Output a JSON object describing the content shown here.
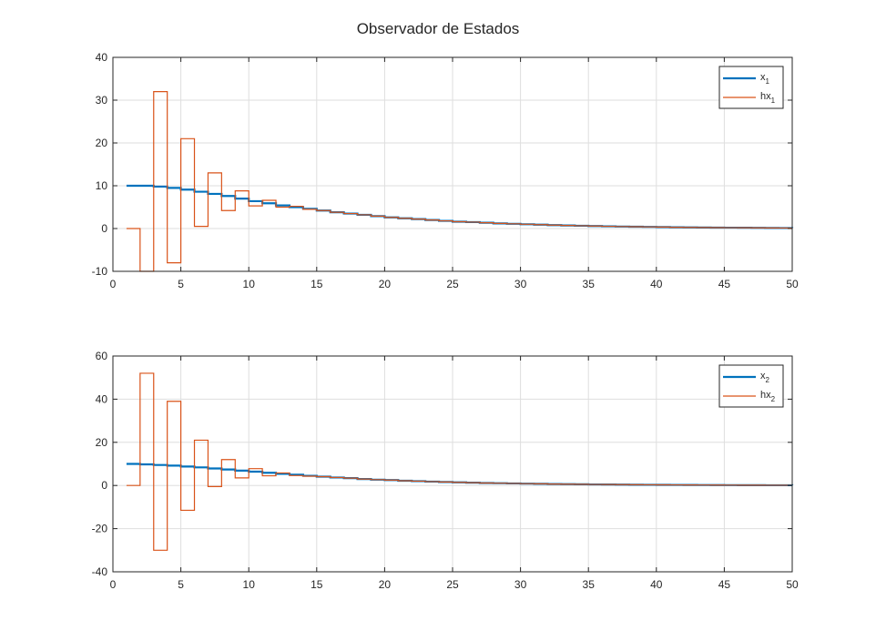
{
  "figure": {
    "title": "Observador de Estados"
  },
  "chart_data": [
    {
      "type": "line",
      "step": true,
      "grid": true,
      "legend_position": "top-right",
      "xlim": [
        0,
        50
      ],
      "ylim": [
        -10,
        40
      ],
      "xticks": [
        0,
        5,
        10,
        15,
        20,
        25,
        30,
        35,
        40,
        45,
        50
      ],
      "yticks": [
        -10,
        0,
        10,
        20,
        30,
        40
      ],
      "colors": {
        "x": "#0072BD",
        "hx": "#D95319"
      },
      "legend": [
        {
          "base": "x",
          "sub": "1",
          "color": "#0072BD"
        },
        {
          "base": "hx",
          "sub": "1",
          "color": "#D95319"
        }
      ],
      "series": [
        {
          "name": "x1",
          "x": [
            1,
            2,
            3,
            4,
            5,
            6,
            7,
            8,
            9,
            10,
            11,
            12,
            13,
            14,
            15,
            16,
            17,
            18,
            19,
            20,
            21,
            22,
            23,
            24,
            25,
            26,
            27,
            28,
            29,
            30,
            31,
            32,
            33,
            34,
            35,
            36,
            37,
            38,
            39,
            40,
            41,
            42,
            43,
            44,
            45,
            46,
            47,
            48,
            49,
            50
          ],
          "values": [
            10,
            10,
            9.8,
            9.5,
            9.1,
            8.6,
            8.1,
            7.6,
            7.0,
            6.4,
            5.9,
            5.4,
            5.0,
            4.6,
            4.2,
            3.8,
            3.5,
            3.2,
            2.9,
            2.6,
            2.4,
            2.2,
            2.0,
            1.8,
            1.6,
            1.5,
            1.35,
            1.2,
            1.1,
            1.0,
            0.9,
            0.8,
            0.72,
            0.65,
            0.58,
            0.52,
            0.47,
            0.42,
            0.38,
            0.34,
            0.3,
            0.27,
            0.24,
            0.22,
            0.2,
            0.18,
            0.16,
            0.14,
            0.12,
            0.1
          ]
        },
        {
          "name": "hx1",
          "x": [
            1,
            2,
            3,
            4,
            5,
            6,
            7,
            8,
            9,
            10,
            11,
            12,
            13,
            14,
            15,
            16,
            17,
            18,
            19,
            20,
            21,
            22,
            23,
            24,
            25,
            26,
            27,
            28,
            29,
            30,
            31,
            32,
            33,
            34,
            35,
            36,
            37,
            38,
            39,
            40,
            41,
            42,
            43,
            44,
            45,
            46,
            47,
            48,
            49,
            50
          ],
          "values": [
            0,
            -10,
            32,
            -8,
            21,
            0.5,
            13,
            4.2,
            8.8,
            5.3,
            6.6,
            5.0,
            5.2,
            4.5,
            4.2,
            3.8,
            3.5,
            3.2,
            2.9,
            2.6,
            2.4,
            2.2,
            2.0,
            1.8,
            1.6,
            1.5,
            1.35,
            1.2,
            1.1,
            1.0,
            0.9,
            0.8,
            0.72,
            0.65,
            0.58,
            0.52,
            0.47,
            0.42,
            0.38,
            0.34,
            0.3,
            0.27,
            0.24,
            0.22,
            0.2,
            0.18,
            0.16,
            0.14,
            0.12,
            0.1
          ]
        }
      ]
    },
    {
      "type": "line",
      "step": true,
      "grid": true,
      "legend_position": "top-right",
      "xlim": [
        0,
        50
      ],
      "ylim": [
        -40,
        60
      ],
      "xticks": [
        0,
        5,
        10,
        15,
        20,
        25,
        30,
        35,
        40,
        45,
        50
      ],
      "yticks": [
        -40,
        -20,
        0,
        20,
        40,
        60
      ],
      "colors": {
        "x": "#0072BD",
        "hx": "#D95319"
      },
      "legend": [
        {
          "base": "x",
          "sub": "2",
          "color": "#0072BD"
        },
        {
          "base": "hx",
          "sub": "2",
          "color": "#D95319"
        }
      ],
      "series": [
        {
          "name": "x2",
          "x": [
            1,
            2,
            3,
            4,
            5,
            6,
            7,
            8,
            9,
            10,
            11,
            12,
            13,
            14,
            15,
            16,
            17,
            18,
            19,
            20,
            21,
            22,
            23,
            24,
            25,
            26,
            27,
            28,
            29,
            30,
            31,
            32,
            33,
            34,
            35,
            36,
            37,
            38,
            39,
            40,
            41,
            42,
            43,
            44,
            45,
            46,
            47,
            48,
            49,
            50
          ],
          "values": [
            10,
            9.8,
            9.5,
            9.2,
            8.8,
            8.4,
            7.9,
            7.4,
            6.9,
            6.4,
            5.9,
            5.4,
            5.0,
            4.5,
            4.1,
            3.7,
            3.4,
            3.0,
            2.7,
            2.5,
            2.2,
            2.0,
            1.8,
            1.6,
            1.45,
            1.3,
            1.15,
            1.05,
            0.95,
            0.85,
            0.76,
            0.68,
            0.61,
            0.55,
            0.49,
            0.44,
            0.4,
            0.36,
            0.32,
            0.29,
            0.26,
            0.23,
            0.21,
            0.19,
            0.17,
            0.15,
            0.13,
            0.12,
            0.1,
            0.09
          ]
        },
        {
          "name": "hx2",
          "x": [
            1,
            2,
            3,
            4,
            5,
            6,
            7,
            8,
            9,
            10,
            11,
            12,
            13,
            14,
            15,
            16,
            17,
            18,
            19,
            20,
            21,
            22,
            23,
            24,
            25,
            26,
            27,
            28,
            29,
            30,
            31,
            32,
            33,
            34,
            35,
            36,
            37,
            38,
            39,
            40,
            41,
            42,
            43,
            44,
            45,
            46,
            47,
            48,
            49,
            50
          ],
          "values": [
            0,
            52,
            -30,
            39,
            -11.5,
            21,
            -0.5,
            12,
            3.5,
            7.8,
            4.5,
            5.8,
            4.6,
            4.3,
            4.1,
            3.7,
            3.4,
            3.0,
            2.7,
            2.5,
            2.2,
            2.0,
            1.8,
            1.6,
            1.45,
            1.3,
            1.15,
            1.05,
            0.95,
            0.85,
            0.76,
            0.68,
            0.61,
            0.55,
            0.49,
            0.44,
            0.4,
            0.36,
            0.32,
            0.29,
            0.26,
            0.23,
            0.21,
            0.19,
            0.17,
            0.15,
            0.13,
            0.12,
            0.1,
            0.09
          ]
        }
      ]
    }
  ]
}
